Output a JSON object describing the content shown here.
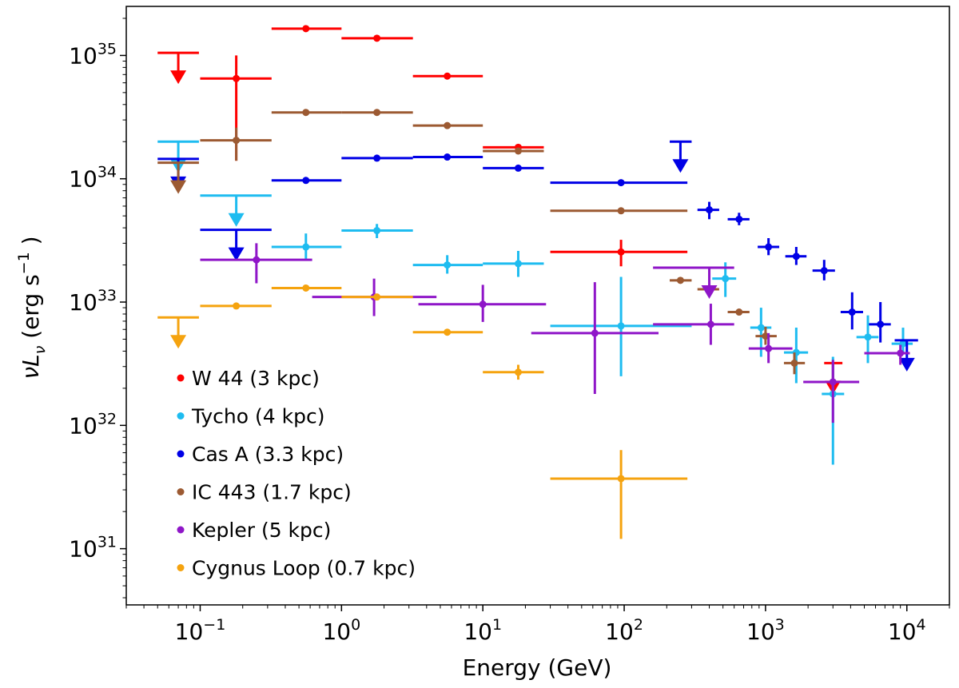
{
  "chart_data": {
    "type": "scatter",
    "title": "",
    "xlabel": "Energy (GeV)",
    "ylabel_parts": [
      "νL",
      "ν",
      " (erg  s",
      "−1",
      " )"
    ],
    "xscale": "log",
    "yscale": "log",
    "xlim": [
      0.03,
      20000
    ],
    "ylim": [
      3.5e+30,
      2.5e+35
    ],
    "grid": false,
    "legend_position": "lower-left",
    "x_tick_labels": [
      {
        "value": 0.1,
        "base": "10",
        "exp": "−1"
      },
      {
        "value": 1,
        "base": "10",
        "exp": "0"
      },
      {
        "value": 10,
        "base": "10",
        "exp": "1"
      },
      {
        "value": 100,
        "base": "10",
        "exp": "2"
      },
      {
        "value": 1000,
        "base": "10",
        "exp": "3"
      },
      {
        "value": 10000,
        "base": "10",
        "exp": "4"
      }
    ],
    "y_tick_labels": [
      {
        "value": 1e+31,
        "base": "10",
        "exp": "31"
      },
      {
        "value": 1e+32,
        "base": "10",
        "exp": "32"
      },
      {
        "value": 1e+33,
        "base": "10",
        "exp": "33"
      },
      {
        "value": 1e+34,
        "base": "10",
        "exp": "34"
      },
      {
        "value": 1e+35,
        "base": "10",
        "exp": "35"
      }
    ],
    "series": [
      {
        "name": "W 44  (3 kpc)",
        "color": "#ff0000",
        "points": [
          {
            "x": 0.18,
            "xlo": 0.1,
            "xhi": 0.32,
            "y": 6.5e+34,
            "ylo": 1.4e+34,
            "yhi": 1e+35
          },
          {
            "x": 0.56,
            "xlo": 0.32,
            "xhi": 1.0,
            "y": 1.65e+35
          },
          {
            "x": 1.78,
            "xlo": 1.0,
            "xhi": 3.2,
            "y": 1.38e+35
          },
          {
            "x": 5.6,
            "xlo": 3.2,
            "xhi": 10,
            "y": 6.8e+34
          },
          {
            "x": 17.8,
            "xlo": 10,
            "xhi": 27,
            "y": 1.8e+34
          },
          {
            "x": 95,
            "xlo": 30,
            "xhi": 280,
            "y": 2.55e+33,
            "ylo": 1.95e+33,
            "yhi": 3.2e+33
          }
        ],
        "upper_limits": [
          {
            "x": 0.07,
            "xlo": 0.05,
            "xhi": 0.098,
            "y": 1.05e+35
          },
          {
            "x": 3000,
            "xlo": 2600,
            "xhi": 3500,
            "y": 3.2e+32
          }
        ]
      },
      {
        "name": "Tycho  (4 kpc)",
        "color": "#1ebcf0",
        "points": [
          {
            "x": 0.56,
            "xlo": 0.32,
            "xhi": 1.0,
            "y": 2.8e+33,
            "ylo": 2.2e+33,
            "yhi": 3.6e+33
          },
          {
            "x": 1.78,
            "xlo": 1.0,
            "xhi": 3.2,
            "y": 3.8e+33,
            "ylo": 3.3e+33,
            "yhi": 4.3e+33
          },
          {
            "x": 5.6,
            "xlo": 3.2,
            "xhi": 10,
            "y": 2e+33,
            "ylo": 1.7e+33,
            "yhi": 2.4e+33
          },
          {
            "x": 17.8,
            "xlo": 10,
            "xhi": 27,
            "y": 2.05e+33,
            "ylo": 1.6e+33,
            "yhi": 2.6e+33
          },
          {
            "x": 95,
            "xlo": 30,
            "xhi": 300,
            "y": 6.4e+32,
            "ylo": 2.5e+32,
            "yhi": 1.6e+33
          },
          {
            "x": 520,
            "xlo": 420,
            "xhi": 620,
            "y": 1.55e+33,
            "ylo": 1.1e+33,
            "yhi": 2.1e+33
          },
          {
            "x": 930,
            "xlo": 780,
            "xhi": 1100,
            "y": 6.2e+32,
            "ylo": 3.6e+32,
            "yhi": 9e+32
          },
          {
            "x": 1650,
            "xlo": 1350,
            "xhi": 2000,
            "y": 3.9e+32,
            "ylo": 2.2e+32,
            "yhi": 6.2e+32
          },
          {
            "x": 3000,
            "xlo": 2500,
            "xhi": 3600,
            "y": 1.8e+32,
            "ylo": 4.8e+31,
            "yhi": 3.6e+32
          },
          {
            "x": 5300,
            "xlo": 4400,
            "xhi": 6300,
            "y": 5.2e+32,
            "ylo": 3.2e+32,
            "yhi": 7.8e+32
          },
          {
            "x": 9400,
            "xlo": 7800,
            "xhi": 11000,
            "y": 4.6e+32,
            "ylo": 3.8e+32,
            "yhi": 6.2e+32
          }
        ],
        "upper_limits": [
          {
            "x": 0.07,
            "xlo": 0.05,
            "xhi": 0.098,
            "y": 2e+34
          },
          {
            "x": 0.18,
            "xlo": 0.1,
            "xhi": 0.32,
            "y": 7.3e+33
          }
        ]
      },
      {
        "name": "Cas A  (3.3 kpc)",
        "color": "#0000e6",
        "points": [
          {
            "x": 0.56,
            "xlo": 0.32,
            "xhi": 1.0,
            "y": 9.7e+33
          },
          {
            "x": 1.78,
            "xlo": 1.0,
            "xhi": 3.2,
            "y": 1.47e+34
          },
          {
            "x": 5.6,
            "xlo": 3.2,
            "xhi": 10,
            "y": 1.5e+34
          },
          {
            "x": 17.8,
            "xlo": 10,
            "xhi": 27,
            "y": 1.22e+34
          },
          {
            "x": 95,
            "xlo": 30,
            "xhi": 280,
            "y": 9.3e+33
          },
          {
            "x": 400,
            "xlo": 330,
            "xhi": 470,
            "y": 5.6e+33,
            "ylo": 4.7e+33,
            "yhi": 6.5e+33
          },
          {
            "x": 650,
            "xlo": 540,
            "xhi": 770,
            "y": 4.7e+33,
            "ylo": 4.2e+33,
            "yhi": 5.3e+33
          },
          {
            "x": 1050,
            "xlo": 880,
            "xhi": 1250,
            "y": 2.8e+33,
            "ylo": 2.4e+33,
            "yhi": 3.3e+33
          },
          {
            "x": 1650,
            "xlo": 1380,
            "xhi": 1950,
            "y": 2.35e+33,
            "ylo": 2e+33,
            "yhi": 2.8e+33
          },
          {
            "x": 2600,
            "xlo": 2150,
            "xhi": 3100,
            "y": 1.8e+33,
            "ylo": 1.5e+33,
            "yhi": 2.2e+33
          },
          {
            "x": 4100,
            "xlo": 3400,
            "xhi": 4900,
            "y": 8.3e+32,
            "ylo": 6e+32,
            "yhi": 1.2e+33
          },
          {
            "x": 6500,
            "xlo": 5400,
            "xhi": 7700,
            "y": 6.6e+32,
            "ylo": 4.7e+32,
            "yhi": 1e+33
          }
        ],
        "upper_limits": [
          {
            "x": 0.07,
            "xlo": 0.05,
            "xhi": 0.098,
            "y": 1.45e+34
          },
          {
            "x": 0.18,
            "xlo": 0.1,
            "xhi": 0.32,
            "y": 3.85e+33
          },
          {
            "x": 250,
            "xlo": 210,
            "xhi": 300,
            "y": 2e+34
          },
          {
            "x": 10000,
            "xlo": 8200,
            "xhi": 12000,
            "y": 4.9e+32
          }
        ]
      },
      {
        "name": "IC 443  (1.7 kpc)",
        "color": "#9c5a32",
        "points": [
          {
            "x": 0.18,
            "xlo": 0.1,
            "xhi": 0.32,
            "y": 2.05e+34,
            "ylo": 1.4e+34,
            "yhi": 2.6e+34
          },
          {
            "x": 0.56,
            "xlo": 0.32,
            "xhi": 1.0,
            "y": 3.45e+34
          },
          {
            "x": 1.78,
            "xlo": 1.0,
            "xhi": 3.2,
            "y": 3.45e+34
          },
          {
            "x": 5.6,
            "xlo": 3.2,
            "xhi": 10,
            "y": 2.7e+34
          },
          {
            "x": 17.8,
            "xlo": 10,
            "xhi": 27,
            "y": 1.68e+34
          },
          {
            "x": 95,
            "xlo": 30,
            "xhi": 280,
            "y": 5.5e+33
          },
          {
            "x": 250,
            "xlo": 210,
            "xhi": 300,
            "y": 1.5e+33
          },
          {
            "x": 400,
            "xlo": 330,
            "xhi": 470,
            "y": 1.27e+33
          },
          {
            "x": 650,
            "xlo": 540,
            "xhi": 770,
            "y": 8.3e+32
          },
          {
            "x": 1000,
            "xlo": 850,
            "xhi": 1200,
            "y": 5.3e+32,
            "ylo": 4.5e+32,
            "yhi": 6.3e+32
          },
          {
            "x": 1600,
            "xlo": 1350,
            "xhi": 1900,
            "y": 3.2e+32,
            "ylo": 2.6e+32,
            "yhi": 3.9e+32
          }
        ],
        "upper_limits": [
          {
            "x": 0.07,
            "xlo": 0.05,
            "xhi": 0.098,
            "y": 1.35e+34
          }
        ]
      },
      {
        "name": "Kepler  (5 kpc)",
        "color": "#8f16c8",
        "points": [
          {
            "x": 0.25,
            "xlo": 0.1,
            "xhi": 0.62,
            "y": 2.2e+33,
            "ylo": 1.42e+33,
            "yhi": 3e+33
          },
          {
            "x": 1.7,
            "xlo": 0.62,
            "xhi": 4.7,
            "y": 1.1e+33,
            "ylo": 7.7e+32,
            "yhi": 1.55e+33
          },
          {
            "x": 10,
            "xlo": 3.5,
            "xhi": 28,
            "y": 9.6e+32,
            "ylo": 6.9e+32,
            "yhi": 1.38e+33
          },
          {
            "x": 62,
            "xlo": 22,
            "xhi": 175,
            "y": 5.6e+32,
            "ylo": 1.8e+32,
            "yhi": 1.45e+33
          },
          {
            "x": 410,
            "xlo": 160,
            "xhi": 600,
            "y": 6.6e+32,
            "ylo": 4.5e+32,
            "yhi": 9.7e+32
          },
          {
            "x": 1050,
            "xlo": 760,
            "xhi": 1550,
            "y": 4.2e+32,
            "ylo": 3.2e+32,
            "yhi": 5.6e+32
          },
          {
            "x": 3000,
            "xlo": 1850,
            "xhi": 4600,
            "y": 2.25e+32,
            "ylo": 1.05e+32,
            "yhi": 3.4e+32
          },
          {
            "x": 9000,
            "xlo": 5000,
            "xhi": 10500,
            "y": 3.85e+32,
            "ylo": 3.1e+32,
            "yhi": 4.5e+32
          }
        ],
        "upper_limits": [
          {
            "x": 400,
            "xlo": 160,
            "xhi": 600,
            "y": 1.9e+33
          }
        ]
      },
      {
        "name": "Cygnus Loop  (0.7 kpc)",
        "color": "#f5a30f",
        "points": [
          {
            "x": 0.18,
            "xlo": 0.1,
            "xhi": 0.32,
            "y": 9.3e+32
          },
          {
            "x": 0.56,
            "xlo": 0.32,
            "xhi": 1.0,
            "y": 1.3e+33
          },
          {
            "x": 1.78,
            "xlo": 1.0,
            "xhi": 3.2,
            "y": 1.1e+33
          },
          {
            "x": 5.6,
            "xlo": 3.2,
            "xhi": 10,
            "y": 5.7e+32
          },
          {
            "x": 17.8,
            "xlo": 10,
            "xhi": 27,
            "y": 2.7e+32,
            "ylo": 2.35e+32,
            "yhi": 3.1e+32
          },
          {
            "x": 95,
            "xlo": 30,
            "xhi": 280,
            "y": 3.7e+31,
            "ylo": 1.2e+31,
            "yhi": 6.3e+31
          }
        ],
        "upper_limits": [
          {
            "x": 0.07,
            "xlo": 0.05,
            "xhi": 0.098,
            "y": 7.5e+32
          }
        ]
      }
    ]
  }
}
